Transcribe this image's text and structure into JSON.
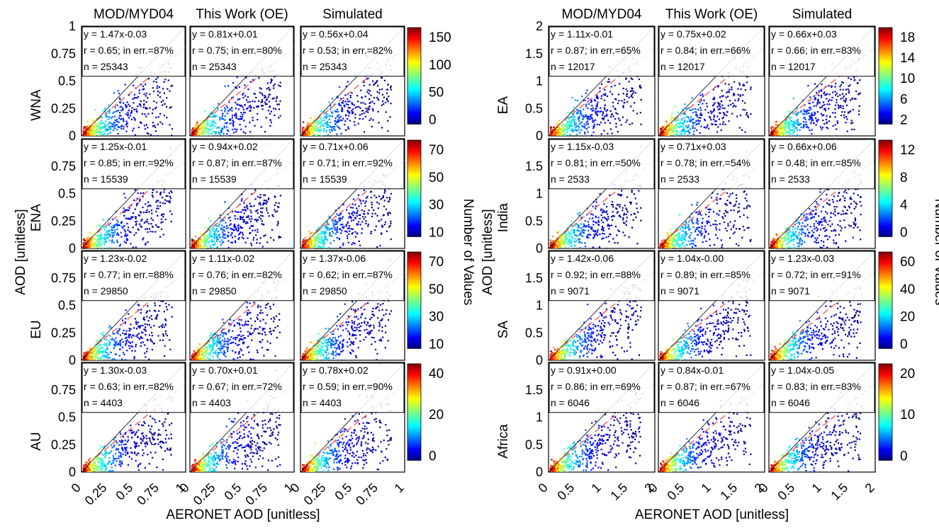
{
  "chart_data": [
    {
      "type": "scatter",
      "subtype": "density-scatter-grid",
      "columns": [
        "MOD/MYD04",
        "This Work (OE)",
        "Simulated"
      ],
      "xlabel": "AERONET AOD [unitless]",
      "ylabel": "AOD [unitless]",
      "colorbar_label": "Number of Values",
      "xlim": [
        0,
        1
      ],
      "ylim": [
        0,
        1
      ],
      "x_ticks": [
        "0",
        "0.25",
        "0.5",
        "0.75",
        "1"
      ],
      "rows": [
        {
          "region": "WNA",
          "y_ticks": [
            "1",
            "0.75",
            "0.5",
            "0.25",
            "0"
          ],
          "colorbar": {
            "max": 150,
            "ticks": [
              "150",
              "100",
              "50",
              "0"
            ]
          },
          "panels": [
            {
              "fit": "y = 1.47x-0.03",
              "stats": "r = 0.65; in err.=87%",
              "n": "n = 25343"
            },
            {
              "fit": "y = 0.81x+0.01",
              "stats": "r = 0.75; in err.=80%",
              "n": "n = 25343"
            },
            {
              "fit": "y = 0.56x+0.04",
              "stats": "r = 0.53; in err.=82%",
              "n": "n = 25343"
            }
          ]
        },
        {
          "region": "ENA",
          "y_ticks": [
            "0.75",
            "0.5",
            "0.25",
            "0"
          ],
          "colorbar": {
            "max": 85,
            "ticks": [
              "70",
              "50",
              "30",
              "10"
            ]
          },
          "panels": [
            {
              "fit": "y = 1.25x-0.01",
              "stats": "r = 0.85; in err.=92%",
              "n": "n = 15539"
            },
            {
              "fit": "y = 0.94x+0.02",
              "stats": "r = 0.87; in err.=87%",
              "n": "n = 15539"
            },
            {
              "fit": "y = 0.71x+0.06",
              "stats": "r = 0.71; in err.=92%",
              "n": "n = 15539"
            }
          ]
        },
        {
          "region": "EU",
          "y_ticks": [
            "0.75",
            "0.5",
            "0.25",
            "0"
          ],
          "colorbar": {
            "max": 85,
            "ticks": [
              "70",
              "50",
              "30",
              "10"
            ]
          },
          "panels": [
            {
              "fit": "y = 1.23x-0.02",
              "stats": "r = 0.77; in err.=88%",
              "n": "n = 29850"
            },
            {
              "fit": "y = 1.11x-0.02",
              "stats": "r = 0.76; in err.=82%",
              "n": "n = 29850"
            },
            {
              "fit": "y = 1.37x-0.06",
              "stats": "r = 0.62; in err.=87%",
              "n": "n = 29850"
            }
          ]
        },
        {
          "region": "AU",
          "y_ticks": [
            "0.75",
            "0.5",
            "0.25",
            "0"
          ],
          "colorbar": {
            "max": 55,
            "ticks": [
              "40",
              "20",
              "0"
            ]
          },
          "panels": [
            {
              "fit": "y = 1.30x-0.03",
              "stats": "r = 0.63; in err.=82%",
              "n": "n = 4403"
            },
            {
              "fit": "y = 0.70x+0.01",
              "stats": "r = 0.67; in err.=72%",
              "n": "n = 4403"
            },
            {
              "fit": "y = 0.78x+0.02",
              "stats": "r = 0.59; in err.=90%",
              "n": "n = 4403"
            }
          ]
        }
      ]
    },
    {
      "type": "scatter",
      "subtype": "density-scatter-grid",
      "columns": [
        "MOD/MYD04",
        "This Work (OE)",
        "Simulated"
      ],
      "xlabel": "AERONET AOD [unitless]",
      "ylabel": "AOD [unitless]",
      "colorbar_label": "Number of Values",
      "xlim": [
        0,
        2
      ],
      "ylim": [
        0,
        2
      ],
      "x_ticks": [
        "0",
        "0.5",
        "1",
        "1.5",
        "2"
      ],
      "rows": [
        {
          "region": "EA",
          "y_ticks": [
            "2",
            "1.5",
            "1",
            "0.5",
            "0"
          ],
          "colorbar": {
            "max": 19,
            "ticks": [
              "18",
              "14",
              "10",
              "6",
              "2"
            ]
          },
          "panels": [
            {
              "fit": "y = 1.11x-0.01",
              "stats": "r = 0.87; in err.=65%",
              "n": "n = 12017"
            },
            {
              "fit": "y = 0.75x+0.02",
              "stats": "r = 0.84; in err.=66%",
              "n": "n = 12017"
            },
            {
              "fit": "y = 0.66x+0.03",
              "stats": "r = 0.66; in err.=83%",
              "n": "n = 12017"
            }
          ]
        },
        {
          "region": "India",
          "y_ticks": [
            "1.5",
            "1",
            "0.5",
            "0"
          ],
          "colorbar": {
            "max": 14,
            "ticks": [
              "12",
              "8",
              "4",
              "0"
            ]
          },
          "panels": [
            {
              "fit": "y = 1.15x-0.03",
              "stats": "r = 0.81; in err.=50%",
              "n": "n = 2533"
            },
            {
              "fit": "y = 0.71x+0.03",
              "stats": "r = 0.78; in err.=54%",
              "n": "n = 2533"
            },
            {
              "fit": "y = 0.66x+0.06",
              "stats": "r = 0.48; in err.=85%",
              "n": "n = 2533"
            }
          ]
        },
        {
          "region": "SA",
          "y_ticks": [
            "1.5",
            "1",
            "0.5",
            "0"
          ],
          "colorbar": {
            "max": 60,
            "ticks": [
              "60",
              "40",
              "20",
              "0"
            ]
          },
          "panels": [
            {
              "fit": "y = 1.42x-0.06",
              "stats": "r = 0.92; in err.=88%",
              "n": "n = 9071"
            },
            {
              "fit": "y = 1.04x-0.00",
              "stats": "r = 0.89; in err.=85%",
              "n": "n = 9071"
            },
            {
              "fit": "y = 1.23x-0.03",
              "stats": "r = 0.72; in err.=91%",
              "n": "n = 9071"
            }
          ]
        },
        {
          "region": "Africa",
          "y_ticks": [
            "1.5",
            "1",
            "0.5",
            "0"
          ],
          "colorbar": {
            "max": 27,
            "ticks": [
              "20",
              "10",
              "0"
            ]
          },
          "panels": [
            {
              "fit": "y = 0.91x+0.00",
              "stats": "r = 0.86; in err.=69%",
              "n": "n = 6046"
            },
            {
              "fit": "y = 0.84x-0.01",
              "stats": "r = 0.87; in err.=67%",
              "n": "n = 6046"
            },
            {
              "fit": "y = 1.04x-0.05",
              "stats": "r = 0.83; in err.=83%",
              "n": "n = 6046"
            }
          ]
        }
      ]
    }
  ]
}
